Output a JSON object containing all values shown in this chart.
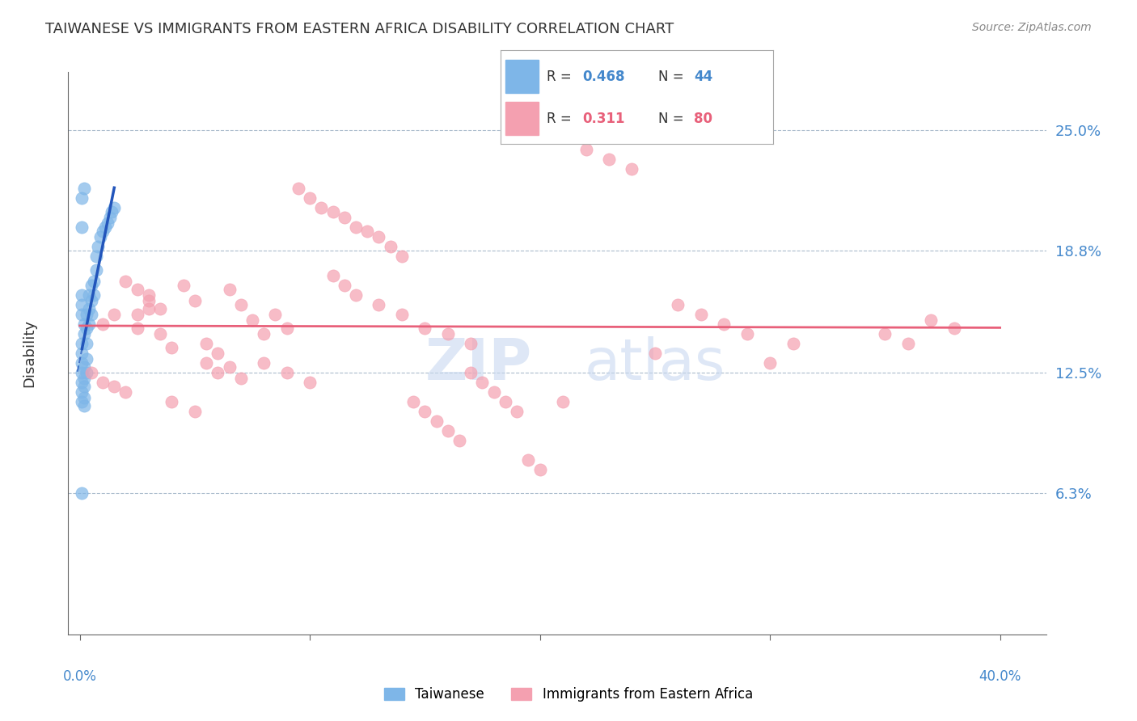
{
  "title": "TAIWANESE VS IMMIGRANTS FROM EASTERN AFRICA DISABILITY CORRELATION CHART",
  "source": "Source: ZipAtlas.com",
  "ylabel": "Disability",
  "yticks": [
    0.063,
    0.125,
    0.188,
    0.25
  ],
  "ytick_labels": [
    "6.3%",
    "12.5%",
    "18.8%",
    "25.0%"
  ],
  "xlim": [
    -0.005,
    0.42
  ],
  "ylim": [
    -0.01,
    0.28
  ],
  "blue_color": "#7EB6E8",
  "pink_color": "#F4A0B0",
  "trend_blue_color": "#2255BB",
  "trend_pink_color": "#E8607A",
  "watermark_color": "#C8D8F0",
  "taiwanese_x": [
    0.001,
    0.001,
    0.001,
    0.001,
    0.001,
    0.001,
    0.001,
    0.001,
    0.001,
    0.001,
    0.002,
    0.002,
    0.002,
    0.002,
    0.002,
    0.002,
    0.002,
    0.003,
    0.003,
    0.003,
    0.003,
    0.003,
    0.004,
    0.004,
    0.004,
    0.005,
    0.005,
    0.005,
    0.006,
    0.006,
    0.007,
    0.007,
    0.008,
    0.009,
    0.01,
    0.011,
    0.012,
    0.013,
    0.014,
    0.015,
    0.002,
    0.001,
    0.001,
    0.001
  ],
  "taiwanese_y": [
    0.155,
    0.16,
    0.165,
    0.14,
    0.135,
    0.13,
    0.125,
    0.12,
    0.115,
    0.11,
    0.145,
    0.15,
    0.128,
    0.122,
    0.118,
    0.112,
    0.108,
    0.155,
    0.148,
    0.14,
    0.132,
    0.125,
    0.165,
    0.158,
    0.15,
    0.17,
    0.162,
    0.155,
    0.172,
    0.165,
    0.178,
    0.185,
    0.19,
    0.195,
    0.198,
    0.2,
    0.202,
    0.205,
    0.208,
    0.21,
    0.22,
    0.2,
    0.215,
    0.063
  ],
  "eastern_africa_x": [
    0.005,
    0.01,
    0.015,
    0.02,
    0.025,
    0.025,
    0.03,
    0.03,
    0.035,
    0.04,
    0.045,
    0.05,
    0.055,
    0.06,
    0.065,
    0.07,
    0.075,
    0.08,
    0.085,
    0.09,
    0.095,
    0.1,
    0.105,
    0.11,
    0.115,
    0.12,
    0.125,
    0.13,
    0.135,
    0.14,
    0.145,
    0.15,
    0.155,
    0.16,
    0.165,
    0.17,
    0.175,
    0.18,
    0.185,
    0.19,
    0.195,
    0.2,
    0.25,
    0.3,
    0.02,
    0.025,
    0.03,
    0.035,
    0.015,
    0.01,
    0.055,
    0.06,
    0.065,
    0.07,
    0.11,
    0.115,
    0.12,
    0.13,
    0.14,
    0.15,
    0.22,
    0.23,
    0.24,
    0.16,
    0.17,
    0.04,
    0.05,
    0.08,
    0.09,
    0.1,
    0.35,
    0.36,
    0.37,
    0.38,
    0.21,
    0.26,
    0.27,
    0.28,
    0.29,
    0.31
  ],
  "eastern_africa_y": [
    0.125,
    0.12,
    0.118,
    0.115,
    0.155,
    0.148,
    0.165,
    0.158,
    0.145,
    0.138,
    0.17,
    0.162,
    0.13,
    0.125,
    0.168,
    0.16,
    0.152,
    0.145,
    0.155,
    0.148,
    0.22,
    0.215,
    0.21,
    0.208,
    0.205,
    0.2,
    0.198,
    0.195,
    0.19,
    0.185,
    0.11,
    0.105,
    0.1,
    0.095,
    0.09,
    0.125,
    0.12,
    0.115,
    0.11,
    0.105,
    0.08,
    0.075,
    0.135,
    0.13,
    0.172,
    0.168,
    0.162,
    0.158,
    0.155,
    0.15,
    0.14,
    0.135,
    0.128,
    0.122,
    0.175,
    0.17,
    0.165,
    0.16,
    0.155,
    0.148,
    0.24,
    0.235,
    0.23,
    0.145,
    0.14,
    0.11,
    0.105,
    0.13,
    0.125,
    0.12,
    0.145,
    0.14,
    0.152,
    0.148,
    0.11,
    0.16,
    0.155,
    0.15,
    0.145,
    0.14
  ]
}
